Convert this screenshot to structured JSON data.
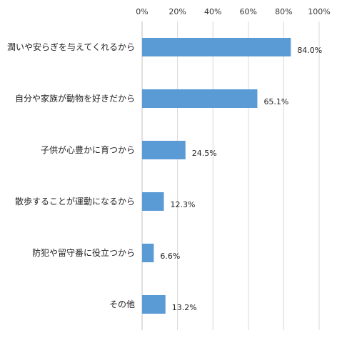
{
  "chart_data": {
    "type": "bar",
    "orientation": "horizontal",
    "categories": [
      "潤いや安らぎを与えてくれるから",
      "自分や家族が動物を好きだから",
      "子供が心豊かに育つから",
      "散歩することが運動になるから",
      "防犯や留守番に役立つから",
      "その他"
    ],
    "values": [
      84.0,
      65.1,
      24.5,
      12.3,
      6.6,
      13.2
    ],
    "value_labels": [
      "84.0%",
      "65.1%",
      "24.5%",
      "12.3%",
      "6.6%",
      "13.2%"
    ],
    "x_ticks": [
      "0%",
      "20%",
      "40%",
      "60%",
      "80%",
      "100%"
    ],
    "xlim": [
      0,
      100
    ],
    "x_axis_position": "top",
    "grid": true,
    "bar_color": "#5b9bd5"
  }
}
